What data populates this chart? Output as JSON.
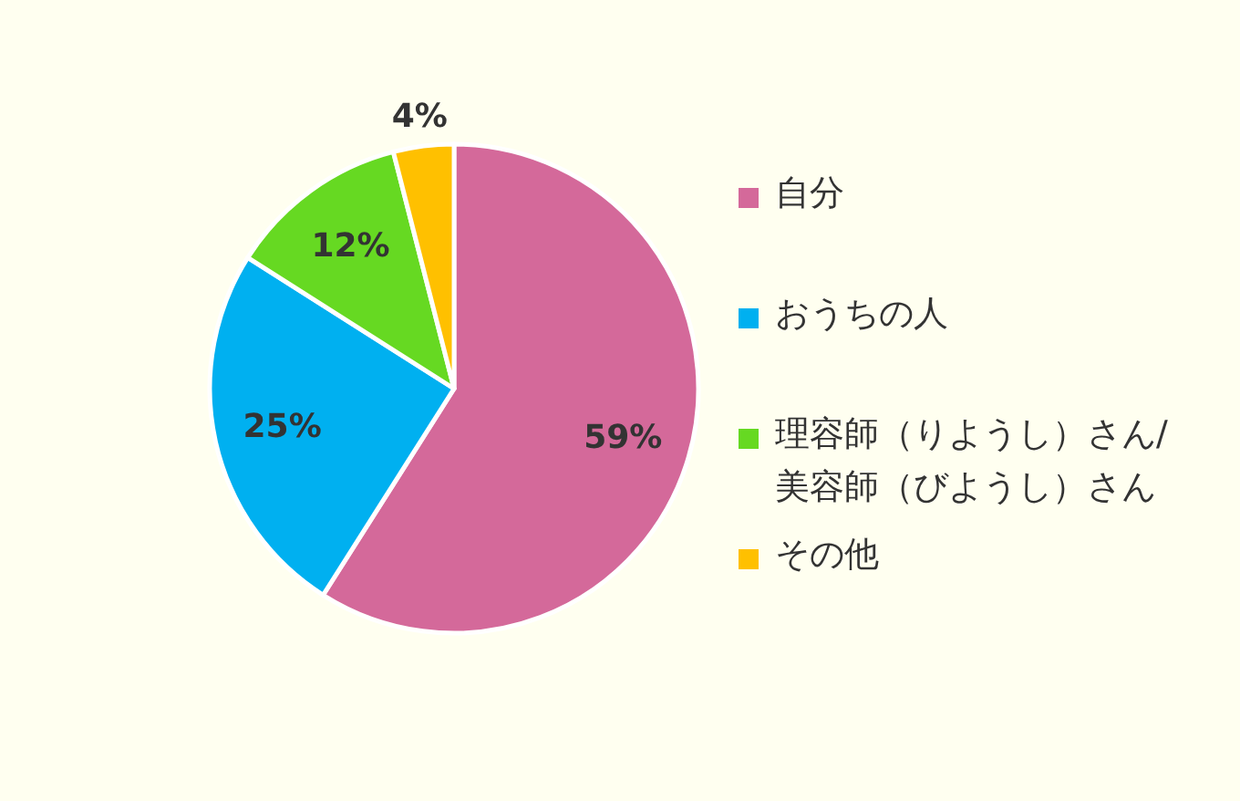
{
  "chart_data": {
    "type": "pie",
    "categories": [
      "自分",
      "おうちの人",
      "理容師（りようし）さん/美容師（びようし）さん",
      "その他"
    ],
    "values": [
      59,
      25,
      12,
      4
    ],
    "colors": [
      "#d4699a",
      "#00b0f0",
      "#66d922",
      "#ffc000"
    ],
    "value_labels": [
      "59%",
      "25%",
      "12%",
      "4%"
    ],
    "legend": "right"
  }
}
